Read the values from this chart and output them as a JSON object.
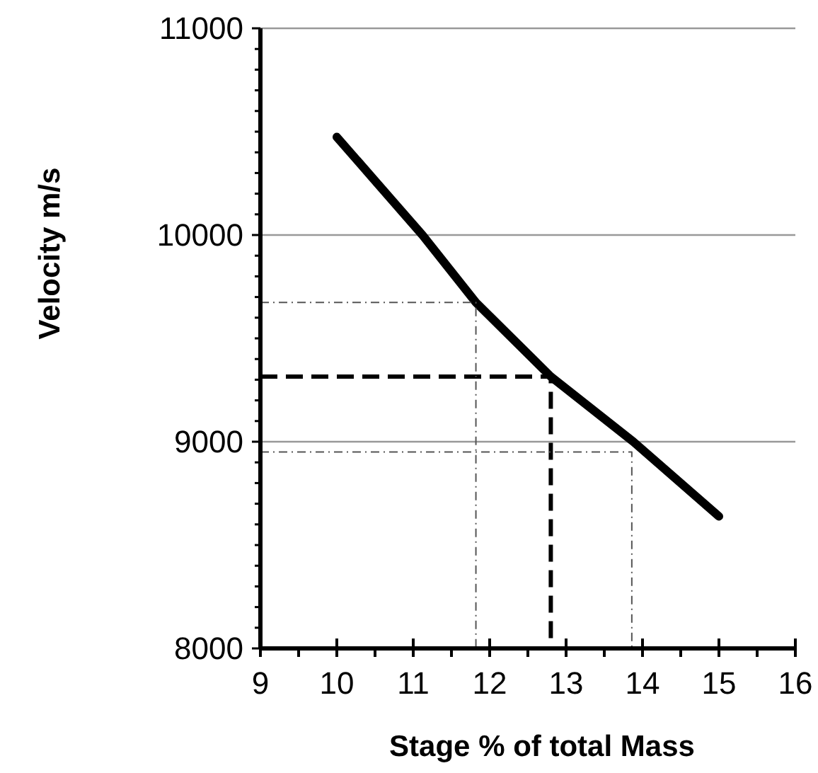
{
  "chart_data": {
    "type": "line",
    "xlabel": "Stage % of total Mass",
    "ylabel": "Velocity m/s",
    "xlim": [
      9,
      16
    ],
    "ylim": [
      8000,
      11000
    ],
    "xticks": [
      9,
      {
        "value": 9.5,
        "label": null
      },
      10,
      {
        "value": 10.5,
        "label": null
      },
      11,
      {
        "value": 11.5,
        "label": null
      },
      12,
      {
        "value": 12.5,
        "label": null
      },
      13,
      {
        "value": 13.5,
        "label": null
      },
      14,
      {
        "value": 14.5,
        "label": null
      },
      15,
      {
        "value": 15.5,
        "label": null
      },
      16
    ],
    "yticks": [
      8000,
      {
        "value": 8100,
        "label": null
      },
      {
        "value": 8200,
        "label": null
      },
      {
        "value": 8300,
        "label": null
      },
      {
        "value": 8400,
        "label": null
      },
      {
        "value": 8500,
        "label": null
      },
      {
        "value": 8600,
        "label": null
      },
      {
        "value": 8700,
        "label": null
      },
      {
        "value": 8800,
        "label": null
      },
      {
        "value": 8900,
        "label": null
      },
      9000,
      {
        "value": 9100,
        "label": null
      },
      {
        "value": 9200,
        "label": null
      },
      {
        "value": 9300,
        "label": null
      },
      {
        "value": 9400,
        "label": null
      },
      {
        "value": 9500,
        "label": null
      },
      {
        "value": 9600,
        "label": null
      },
      {
        "value": 9700,
        "label": null
      },
      {
        "value": 9800,
        "label": null
      },
      {
        "value": 9900,
        "label": null
      },
      10000,
      {
        "value": 10100,
        "label": null
      },
      {
        "value": 10200,
        "label": null
      },
      {
        "value": 10300,
        "label": null
      },
      {
        "value": 10400,
        "label": null
      },
      {
        "value": 10500,
        "label": null
      },
      {
        "value": 10600,
        "label": null
      },
      {
        "value": 10700,
        "label": null
      },
      {
        "value": 10800,
        "label": null
      },
      {
        "value": 10900,
        "label": null
      },
      11000
    ],
    "grid": "y",
    "marker": "none",
    "series": [
      {
        "color": "#000000",
        "line_style": "solid",
        "x": [
          10,
          11.12,
          11.82,
          12.8,
          13.88,
          15
        ],
        "values": [
          10474,
          10000,
          9674,
          9315,
          9000,
          8639
        ]
      },
      {
        "color": "#000000",
        "line_style": "dashed",
        "x": [
          9,
          12.8,
          12.8
        ],
        "values": [
          9315,
          9315,
          8000
        ]
      },
      {
        "color": "#555555",
        "line_style": "dotted",
        "x": [
          9,
          11.82,
          11.82
        ],
        "values": [
          9674,
          9674,
          8000
        ]
      },
      {
        "color": "#555555",
        "line_style": "dotted",
        "x": [
          9,
          13.86,
          13.86
        ],
        "values": [
          8950,
          8950,
          8000
        ]
      }
    ]
  }
}
